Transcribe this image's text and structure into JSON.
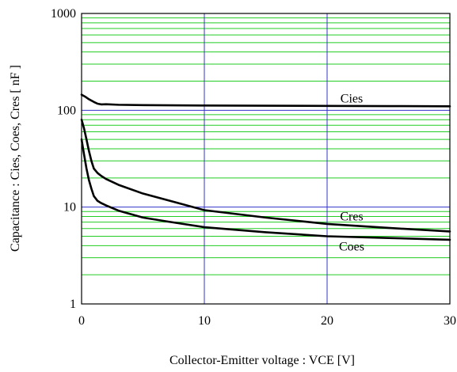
{
  "chart_data": {
    "type": "line",
    "xlabel": "Collector-Emitter voltage : VCE [V]",
    "ylabel": "Capacitance  :  Cies, Coes, Cres  [ nF ]",
    "xlim": [
      0,
      30
    ],
    "ylim": [
      1,
      1000
    ],
    "y_scale": "log",
    "x_ticks": [
      0,
      10,
      20,
      30
    ],
    "x_tick_labels": [
      "0",
      "10",
      "20",
      "30"
    ],
    "y_ticks": [
      1,
      10,
      100,
      1000
    ],
    "y_tick_labels": [
      "1",
      "10",
      "100",
      "1000"
    ],
    "grid": true,
    "colors": {
      "minor_grid": "#22cc22",
      "major_grid": "#3333cc",
      "series": "#000000",
      "frame": "#000000"
    },
    "series": [
      {
        "name": "Cies",
        "x": [
          0,
          0.3,
          0.6,
          1.0,
          1.3,
          1.6,
          2,
          3,
          5,
          10,
          15,
          20,
          25,
          30
        ],
        "y": [
          145,
          138,
          130,
          122,
          117,
          115,
          115.5,
          114,
          113,
          112,
          111.5,
          111,
          110.5,
          110
        ]
      },
      {
        "name": "Cres",
        "x": [
          0,
          0.2,
          0.4,
          0.6,
          0.8,
          1.0,
          1.3,
          1.6,
          2,
          3,
          5,
          7,
          10,
          15,
          20,
          25,
          30
        ],
        "y": [
          80,
          65,
          50,
          38,
          30,
          25,
          22.5,
          21,
          19.5,
          17,
          13.8,
          11.8,
          9.3,
          7.8,
          6.7,
          6.1,
          5.6
        ]
      },
      {
        "name": "Coes",
        "x": [
          0,
          0.2,
          0.4,
          0.6,
          0.8,
          1.0,
          1.3,
          1.6,
          2,
          3,
          5,
          7,
          10,
          15,
          20,
          25,
          30
        ],
        "y": [
          50,
          35,
          25,
          19,
          15.5,
          13,
          11.6,
          11,
          10.4,
          9.2,
          7.8,
          7.1,
          6.2,
          5.5,
          5.0,
          4.8,
          4.6
        ]
      }
    ],
    "labels": [
      {
        "text": "Cies",
        "series": "Cies"
      },
      {
        "text": "Cres",
        "series": "Cres"
      },
      {
        "text": "Coes",
        "series": "Coes"
      }
    ]
  }
}
